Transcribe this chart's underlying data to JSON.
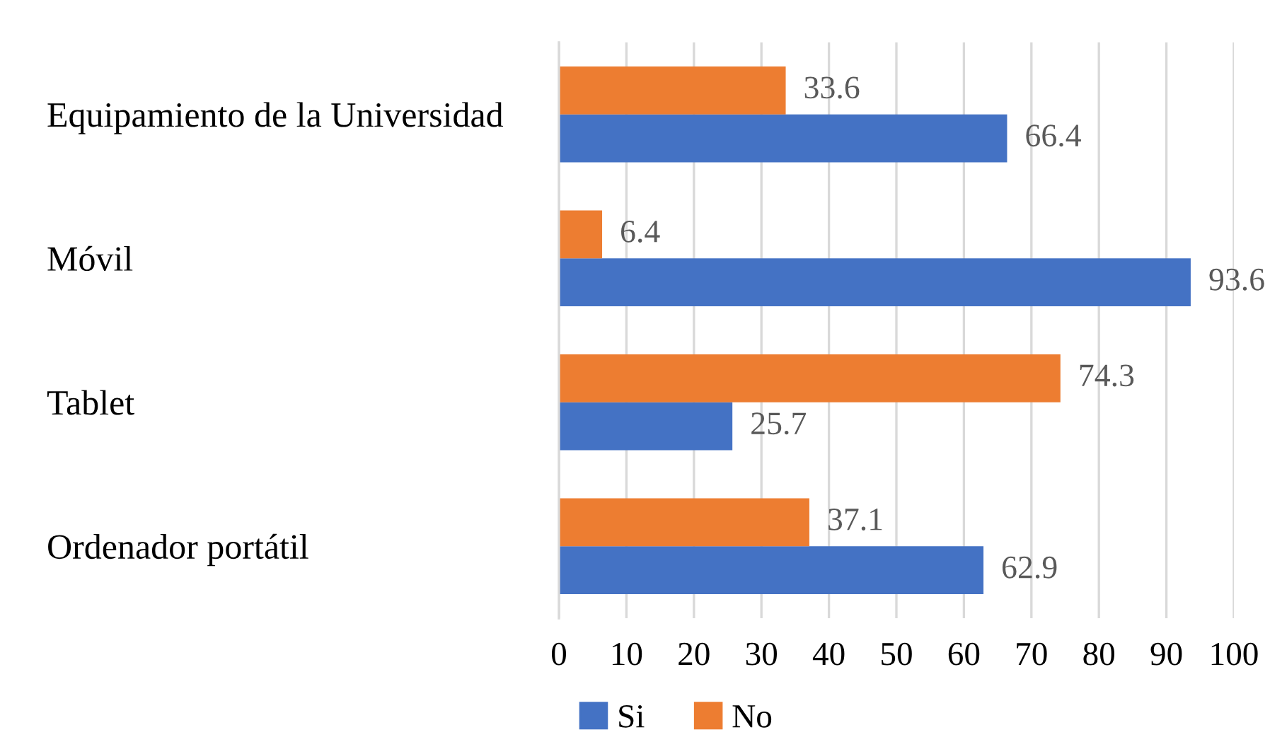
{
  "chart_data": {
    "type": "bar",
    "orientation": "horizontal",
    "categories": [
      "Equipamiento de la Universidad",
      "Móvil",
      "Tablet",
      "Ordenador portátil"
    ],
    "series": [
      {
        "name": "Si",
        "color": "#4472c4",
        "values": [
          66.4,
          93.6,
          25.7,
          62.9
        ]
      },
      {
        "name": "No",
        "color": "#ed7d31",
        "values": [
          33.6,
          6.4,
          74.3,
          37.1
        ]
      }
    ],
    "xlim": [
      0,
      100
    ],
    "xticks": [
      0,
      10,
      20,
      30,
      40,
      50,
      60,
      70,
      80,
      90,
      100
    ],
    "grid": "x",
    "legend": "bottom",
    "data_labels": true
  }
}
